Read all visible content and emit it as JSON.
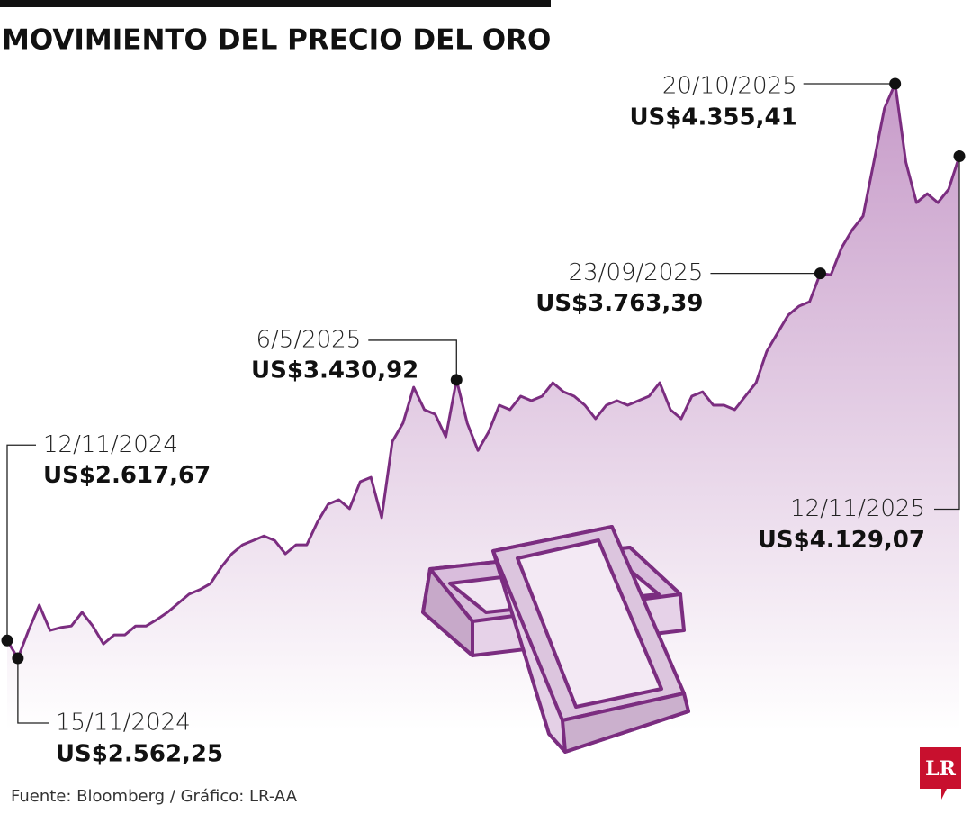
{
  "chart_data": {
    "type": "area",
    "title": "MOVIMIENTO DEL PRECIO DEL ORO",
    "source": "Fuente: Bloomberg / Gráfico: LR-AA",
    "logo": "LR",
    "color": "#7b2d80",
    "categories": [
      "12/11/2024",
      "15/11/2024",
      null,
      null,
      null,
      null,
      null,
      null,
      null,
      null,
      null,
      null,
      null,
      null,
      null,
      null,
      null,
      null,
      null,
      null,
      null,
      null,
      null,
      null,
      null,
      null,
      null,
      null,
      null,
      null,
      null,
      null,
      null,
      null,
      null,
      null,
      null,
      null,
      null,
      null,
      null,
      null,
      "6/5/2025",
      null,
      null,
      null,
      null,
      null,
      null,
      null,
      null,
      null,
      null,
      null,
      null,
      null,
      null,
      null,
      null,
      null,
      null,
      null,
      null,
      null,
      null,
      null,
      null,
      null,
      null,
      null,
      null,
      null,
      null,
      null,
      null,
      null,
      "23/09/2025",
      null,
      null,
      null,
      null,
      null,
      null,
      "20/10/2025",
      null,
      null,
      null,
      null,
      null,
      "12/11/2025"
    ],
    "values": [
      2617.67,
      2562.25,
      2649,
      2728,
      2649,
      2658,
      2663,
      2706,
      2663,
      2607,
      2635,
      2635,
      2663,
      2663,
      2683,
      2706,
      2734,
      2762,
      2776,
      2795,
      2846,
      2888,
      2916,
      2930,
      2944,
      2930,
      2888,
      2916,
      2916,
      2987,
      3043,
      3057,
      3029,
      3113,
      3127,
      3001,
      3239,
      3296,
      3408,
      3338,
      3324,
      3253,
      3430.92,
      3296,
      3211,
      3268,
      3352,
      3338,
      3380,
      3366,
      3380,
      3422,
      3394,
      3380,
      3352,
      3310,
      3352,
      3366,
      3352,
      3366,
      3380,
      3422,
      3338,
      3310,
      3380,
      3394,
      3352,
      3352,
      3338,
      3380,
      3422,
      3520,
      3577,
      3633,
      3661,
      3675,
      3763.39,
      3759,
      3844,
      3900,
      3942,
      4110,
      4279,
      4355.41,
      4110,
      3984,
      4012,
      3984,
      4026,
      4129.07
    ],
    "value_labels": [
      "US$2.617,67",
      "US$2.562,25",
      null,
      null,
      null,
      null,
      null,
      null,
      null,
      null,
      null,
      null,
      null,
      null,
      null,
      null,
      null,
      null,
      null,
      null,
      null,
      null,
      null,
      null,
      null,
      null,
      null,
      null,
      null,
      null,
      null,
      null,
      null,
      null,
      null,
      null,
      null,
      null,
      null,
      null,
      null,
      null,
      "US$3.430,92",
      null,
      null,
      null,
      null,
      null,
      null,
      null,
      null,
      null,
      null,
      null,
      null,
      null,
      null,
      null,
      null,
      null,
      null,
      null,
      null,
      null,
      null,
      null,
      null,
      null,
      null,
      null,
      null,
      null,
      null,
      null,
      null,
      null,
      "US$3.763,39",
      null,
      null,
      null,
      null,
      null,
      null,
      "US$4.355,41",
      null,
      null,
      null,
      null,
      null,
      "US$4.129,07"
    ]
  }
}
